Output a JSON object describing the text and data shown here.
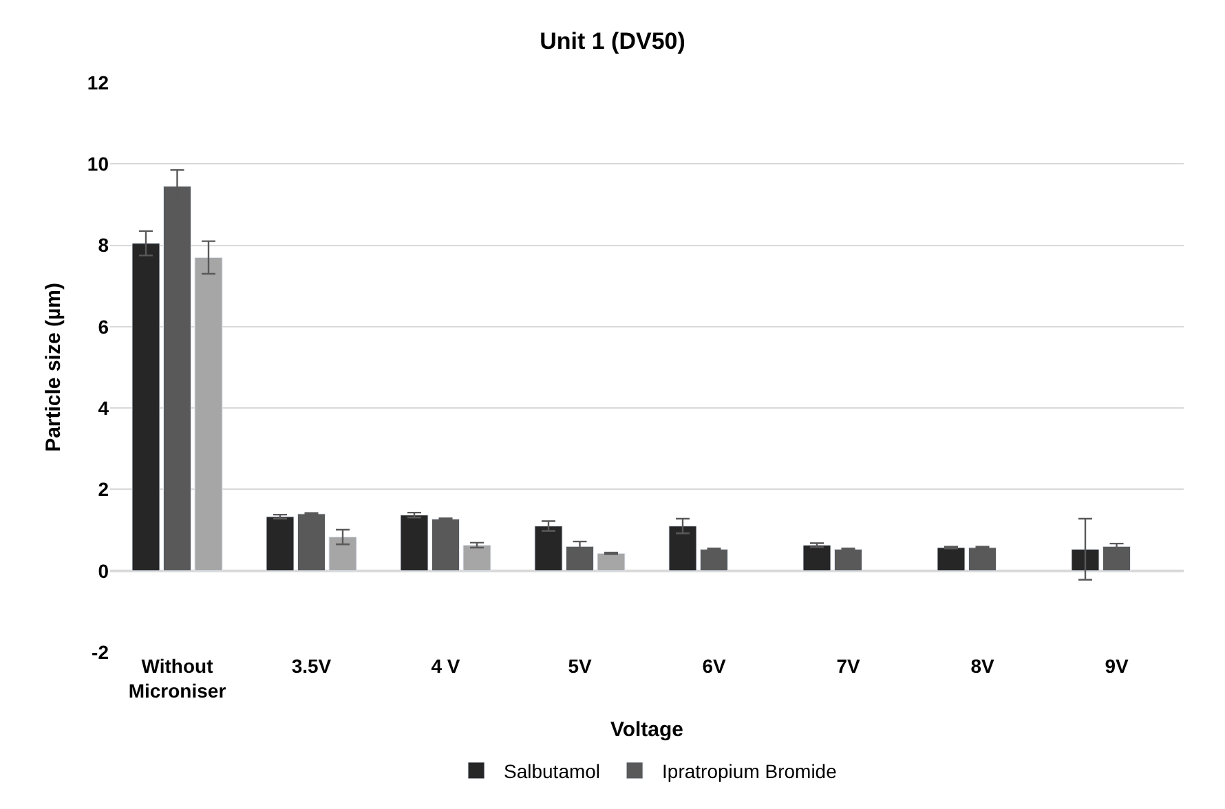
{
  "chart_data": {
    "type": "bar",
    "title": "Unit 1 (DV50)",
    "xlabel": "Voltage",
    "ylabel": "Particle size (µm)",
    "categories": [
      "Without\nMicroniser",
      "3.5V",
      "4 V",
      "5V",
      "6V",
      "7V",
      "8V",
      "9V"
    ],
    "series": [
      {
        "name": "Salbutamol",
        "color": "#262626",
        "values": [
          8.05,
          1.33,
          1.37,
          1.1,
          1.1,
          0.63,
          0.57,
          0.53
        ],
        "errors": [
          0.3,
          0.05,
          0.06,
          0.12,
          0.18,
          0.05,
          0.02,
          0.75
        ]
      },
      {
        "name": "Ipratropium Bromide",
        "color": "#595959",
        "values": [
          9.45,
          1.4,
          1.27,
          0.6,
          0.53,
          0.53,
          0.57,
          0.6
        ],
        "errors": [
          0.4,
          0.02,
          0.02,
          0.12,
          0.02,
          0.02,
          0.02,
          0.07
        ]
      },
      {
        "color": "#a6a6a6",
        "values": [
          7.7,
          0.83,
          0.63,
          0.43,
          null,
          null,
          null,
          null
        ],
        "errors": [
          0.4,
          0.18,
          0.06,
          0.02,
          null,
          null,
          null,
          null
        ]
      }
    ],
    "ylim": [
      -2,
      12
    ],
    "yticks": [
      -2,
      0,
      2,
      4,
      6,
      8,
      10,
      12
    ],
    "grid": "y",
    "legend": "bottom"
  }
}
